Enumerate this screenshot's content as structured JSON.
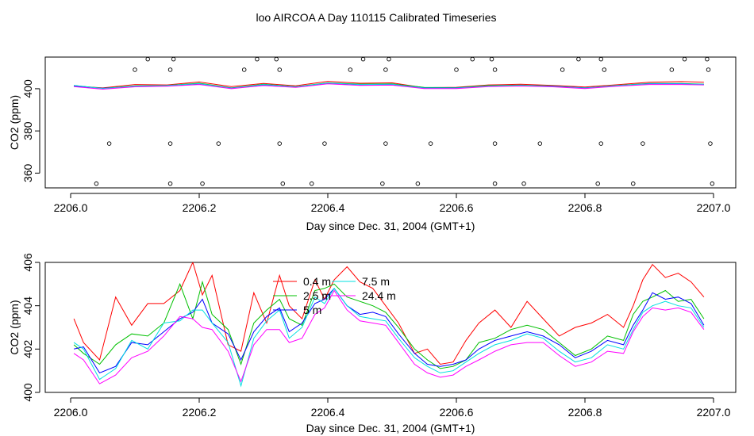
{
  "title": "loo AIRCOA A  Day 110115  Calibrated Timeseries",
  "chart_data": [
    {
      "type": "scatter",
      "xlabel": "Day since Dec. 31, 2004 (GMT+1)",
      "ylabel": "CO2 (ppm)",
      "xlim": [
        2206.0,
        2207.0
      ],
      "ylim": [
        353,
        415
      ],
      "x_ticks": [
        "2206.0",
        "2206.2",
        "2206.4",
        "2206.6",
        "2206.8",
        "2207.0"
      ],
      "y_ticks": [
        "360",
        "380",
        "400"
      ],
      "y_tick_values": [
        360,
        380,
        400
      ],
      "colors": [
        "#ff0000",
        "#00c000",
        "#0000ff",
        "#00e0e0",
        "#ff00ff"
      ],
      "line_series": [
        {
          "x": [
            2206.005,
            2206.05,
            2206.1,
            2206.15,
            2206.2,
            2206.25,
            2206.3,
            2206.35,
            2206.4,
            2206.45,
            2206.5,
            2206.55,
            2206.6,
            2206.65,
            2206.7,
            2206.75,
            2206.8,
            2206.85,
            2206.9,
            2206.95,
            2206.985
          ],
          "y": [
            401.3,
            400.4,
            402,
            401.8,
            403.2,
            401,
            402.5,
            401.4,
            403.5,
            402.6,
            402.8,
            400.5,
            400.7,
            401.8,
            402.1,
            401.6,
            400.8,
            401.9,
            403.1,
            403.4,
            403.1
          ]
        },
        {
          "x": [
            2206.005,
            2206.05,
            2206.1,
            2206.15,
            2206.2,
            2206.25,
            2206.3,
            2206.35,
            2206.4,
            2206.45,
            2206.5,
            2206.55,
            2206.6,
            2206.65,
            2206.7,
            2206.75,
            2206.8,
            2206.85,
            2206.9,
            2206.95,
            2206.985
          ],
          "y": [
            401.5,
            400.2,
            401.4,
            401.6,
            402.6,
            400.4,
            402.1,
            401,
            402.8,
            402.2,
            402.3,
            400.6,
            400.5,
            401.5,
            401.7,
            401.3,
            400.4,
            401.6,
            402.5,
            402.5,
            402.2
          ]
        },
        {
          "x": [
            2206.005,
            2206.05,
            2206.1,
            2206.15,
            2206.2,
            2206.25,
            2206.3,
            2206.35,
            2206.4,
            2206.45,
            2206.5,
            2206.55,
            2206.6,
            2206.65,
            2206.7,
            2206.75,
            2206.8,
            2206.85,
            2206.9,
            2206.95,
            2206.985
          ],
          "y": [
            401.2,
            400.2,
            401.1,
            401.4,
            402.3,
            400.3,
            401.8,
            400.8,
            402.6,
            401.9,
            402,
            400.4,
            400.4,
            401.2,
            401.5,
            401.2,
            400.4,
            401.4,
            402.4,
            402.4,
            402
          ]
        },
        {
          "x": [
            2206.005,
            2206.05,
            2206.1,
            2206.15,
            2206.2,
            2206.25,
            2206.3,
            2206.35,
            2206.4,
            2206.45,
            2206.5,
            2206.55,
            2206.6,
            2206.65,
            2206.7,
            2206.75,
            2206.8,
            2206.85,
            2206.9,
            2206.95,
            2206.985
          ],
          "y": [
            401.6,
            400.1,
            401.3,
            401.5,
            402.4,
            400.2,
            402,
            400.9,
            402.7,
            402,
            402.1,
            400.3,
            400.3,
            401.3,
            401.6,
            401.1,
            400.3,
            401.5,
            402.3,
            402.3,
            402.1
          ]
        },
        {
          "x": [
            2206.005,
            2206.05,
            2206.1,
            2206.15,
            2206.2,
            2206.25,
            2206.3,
            2206.35,
            2206.4,
            2206.45,
            2206.5,
            2206.55,
            2206.6,
            2206.65,
            2206.7,
            2206.75,
            2206.8,
            2206.85,
            2206.9,
            2206.95,
            2206.985
          ],
          "y": [
            401,
            399.8,
            400.9,
            401.2,
            402,
            400,
            401.5,
            400.6,
            402.3,
            401.6,
            401.7,
            400.1,
            400.1,
            401,
            401.3,
            400.9,
            400.1,
            401.2,
            402,
            402,
            401.8
          ]
        }
      ],
      "points": {
        "x": [
          2206.12,
          2206.16,
          2206.29,
          2206.32,
          2206.455,
          2206.495,
          2206.625,
          2206.655,
          2206.79,
          2206.825,
          2206.955,
          2206.99,
          2206.1,
          2206.155,
          2206.27,
          2206.325,
          2206.435,
          2206.49,
          2206.6,
          2206.66,
          2206.765,
          2206.83,
          2206.935,
          2206.992,
          2206.06,
          2206.155,
          2206.23,
          2206.325,
          2206.395,
          2206.49,
          2206.56,
          2206.66,
          2206.73,
          2206.825,
          2206.89,
          2206.995,
          2206.04,
          2206.155,
          2206.205,
          2206.33,
          2206.375,
          2206.485,
          2206.54,
          2206.66,
          2206.705,
          2206.82,
          2206.875,
          2206.998
        ],
        "y": [
          414,
          414,
          414,
          414,
          414,
          414,
          414,
          414,
          414,
          414,
          414,
          414,
          409,
          409,
          409,
          409,
          409,
          409,
          409,
          409,
          409,
          409,
          409,
          409,
          374,
          374,
          374,
          374,
          374,
          374,
          374,
          374,
          374,
          374,
          374,
          374,
          355,
          355,
          355,
          355,
          355,
          355,
          355,
          355,
          355,
          355,
          355,
          355
        ]
      }
    },
    {
      "type": "line",
      "xlabel": "Day since Dec. 31, 2004 (GMT+1)",
      "ylabel": "CO2 (ppm)",
      "xlim": [
        2206.0,
        2207.0
      ],
      "ylim": [
        400,
        406
      ],
      "x_ticks": [
        "2206.0",
        "2206.2",
        "2206.4",
        "2206.6",
        "2206.8",
        "2207.0"
      ],
      "y_ticks": [
        "400",
        "402",
        "404",
        "406"
      ],
      "y_tick_values": [
        400,
        402,
        404,
        406
      ],
      "legend": [
        "0.4 m",
        "2.5 m",
        "5 m",
        "7.5 m",
        "24.4 m"
      ],
      "legend_position": "top-center",
      "colors": [
        "#ff0000",
        "#00c000",
        "#0000ff",
        "#00e0e0",
        "#ff00ff"
      ],
      "series": [
        {
          "name": "0.4 m",
          "x": [
            2206.005,
            2206.02,
            2206.045,
            2206.07,
            2206.095,
            2206.12,
            2206.145,
            2206.17,
            2206.19,
            2206.205,
            2206.22,
            2206.245,
            2206.265,
            2206.285,
            2206.305,
            2206.325,
            2206.34,
            2206.36,
            2206.38,
            2206.395,
            2206.41,
            2206.43,
            2206.45,
            2206.47,
            2206.49,
            2206.51,
            2206.535,
            2206.555,
            2206.575,
            2206.595,
            2206.615,
            2206.635,
            2206.66,
            2206.685,
            2206.71,
            2206.735,
            2206.76,
            2206.785,
            2206.81,
            2206.835,
            2206.86,
            2206.875,
            2206.89,
            2206.905,
            2206.925,
            2206.945,
            2206.965,
            2206.985
          ],
          "y": [
            403.4,
            402.3,
            401.5,
            404.4,
            403.1,
            404.1,
            404.1,
            404.7,
            406.0,
            404.5,
            405.4,
            402.2,
            401.9,
            404.6,
            403.2,
            405.4,
            404.0,
            403.4,
            405.2,
            404.3,
            405.2,
            405.8,
            405.1,
            404.8,
            404.0,
            403.2,
            401.8,
            402.0,
            401.3,
            401.4,
            402.4,
            403.2,
            403.8,
            403.0,
            404.2,
            403.4,
            402.6,
            403.0,
            403.2,
            403.6,
            403.0,
            404.0,
            405.2,
            405.9,
            405.3,
            405.5,
            405.1,
            404.4
          ]
        },
        {
          "name": "2.5 m",
          "x": [
            2206.005,
            2206.02,
            2206.045,
            2206.07,
            2206.095,
            2206.12,
            2206.145,
            2206.17,
            2206.19,
            2206.205,
            2206.22,
            2206.245,
            2206.265,
            2206.285,
            2206.305,
            2206.325,
            2206.34,
            2206.36,
            2206.38,
            2206.395,
            2206.41,
            2206.43,
            2206.45,
            2206.47,
            2206.49,
            2206.51,
            2206.535,
            2206.555,
            2206.575,
            2206.595,
            2206.615,
            2206.635,
            2206.66,
            2206.685,
            2206.71,
            2206.735,
            2206.76,
            2206.785,
            2206.81,
            2206.835,
            2206.86,
            2206.875,
            2206.89,
            2206.905,
            2206.925,
            2206.945,
            2206.965,
            2206.985
          ],
          "y": [
            402.2,
            401.8,
            401.3,
            402.2,
            402.7,
            402.6,
            403.2,
            405.0,
            403.4,
            405.1,
            403.6,
            402.9,
            401.3,
            403.2,
            403.8,
            404.3,
            403.4,
            403.1,
            404.7,
            404.8,
            405.0,
            404.4,
            404.2,
            404.0,
            403.7,
            403.0,
            402.0,
            401.5,
            401.1,
            401.2,
            401.5,
            402.3,
            402.5,
            402.9,
            403.1,
            402.9,
            402.3,
            401.7,
            402.0,
            402.6,
            402.4,
            403.6,
            404.2,
            404.4,
            404.7,
            404.2,
            404.3,
            403.4
          ]
        },
        {
          "name": "5 m",
          "x": [
            2206.005,
            2206.02,
            2206.045,
            2206.07,
            2206.095,
            2206.12,
            2206.145,
            2206.17,
            2206.19,
            2206.205,
            2206.22,
            2206.245,
            2206.265,
            2206.285,
            2206.305,
            2206.325,
            2206.34,
            2206.36,
            2206.38,
            2206.395,
            2206.41,
            2206.43,
            2206.45,
            2206.47,
            2206.49,
            2206.51,
            2206.535,
            2206.555,
            2206.575,
            2206.595,
            2206.615,
            2206.635,
            2206.66,
            2206.685,
            2206.71,
            2206.735,
            2206.76,
            2206.785,
            2206.81,
            2206.835,
            2206.86,
            2206.875,
            2206.89,
            2206.905,
            2206.925,
            2206.945,
            2206.965,
            2206.985
          ],
          "y": [
            402.0,
            402.1,
            400.9,
            401.2,
            402.3,
            402.2,
            402.8,
            403.4,
            403.7,
            404.3,
            403.2,
            402.7,
            401.5,
            402.8,
            403.5,
            403.9,
            402.8,
            403.2,
            404.1,
            404.3,
            404.8,
            404.0,
            403.6,
            403.7,
            403.5,
            402.7,
            401.8,
            401.3,
            401.2,
            401.3,
            401.5,
            402.0,
            402.4,
            402.6,
            402.8,
            402.6,
            402.2,
            401.6,
            401.9,
            402.4,
            402.2,
            403.1,
            403.8,
            404.6,
            404.3,
            404.4,
            404.1,
            403.1
          ]
        },
        {
          "name": "7.5 m",
          "x": [
            2206.005,
            2206.02,
            2206.045,
            2206.07,
            2206.095,
            2206.12,
            2206.145,
            2206.17,
            2206.19,
            2206.205,
            2206.22,
            2206.245,
            2206.265,
            2206.285,
            2206.305,
            2206.325,
            2206.34,
            2206.36,
            2206.38,
            2206.395,
            2206.41,
            2206.43,
            2206.45,
            2206.47,
            2206.49,
            2206.51,
            2206.535,
            2206.555,
            2206.575,
            2206.595,
            2206.615,
            2206.635,
            2206.66,
            2206.685,
            2206.71,
            2206.735,
            2206.76,
            2206.785,
            2206.81,
            2206.835,
            2206.86,
            2206.875,
            2206.89,
            2206.905,
            2206.925,
            2206.945,
            2206.965,
            2206.985
          ],
          "y": [
            402.3,
            402.0,
            400.6,
            401.1,
            402.4,
            402.0,
            403.2,
            403.3,
            403.8,
            403.8,
            403.2,
            402.3,
            400.3,
            402.5,
            403.3,
            403.8,
            402.5,
            403.0,
            404.4,
            404.1,
            404.8,
            404.0,
            403.5,
            403.4,
            403.3,
            402.5,
            401.6,
            401.2,
            400.9,
            401.0,
            401.4,
            401.8,
            402.2,
            402.4,
            402.7,
            402.5,
            401.9,
            401.4,
            401.6,
            402.2,
            402.0,
            402.9,
            403.7,
            404.0,
            404.2,
            404.0,
            403.9,
            403.0
          ]
        },
        {
          "name": "24.4 m",
          "x": [
            2206.005,
            2206.02,
            2206.045,
            2206.07,
            2206.095,
            2206.12,
            2206.145,
            2206.17,
            2206.19,
            2206.205,
            2206.22,
            2206.245,
            2206.265,
            2206.285,
            2206.305,
            2206.325,
            2206.34,
            2206.36,
            2206.38,
            2206.395,
            2206.41,
            2206.43,
            2206.45,
            2206.47,
            2206.49,
            2206.51,
            2206.535,
            2206.555,
            2206.575,
            2206.595,
            2206.615,
            2206.635,
            2206.66,
            2206.685,
            2206.71,
            2206.735,
            2206.76,
            2206.785,
            2206.81,
            2206.835,
            2206.86,
            2206.875,
            2206.89,
            2206.905,
            2206.925,
            2206.945,
            2206.965,
            2206.985
          ],
          "y": [
            401.8,
            401.5,
            400.4,
            400.8,
            401.6,
            401.9,
            402.6,
            403.5,
            403.4,
            403.0,
            402.9,
            401.9,
            400.5,
            402.2,
            402.9,
            402.9,
            402.3,
            402.5,
            403.6,
            403.9,
            404.7,
            403.8,
            403.3,
            403.2,
            403.1,
            402.3,
            401.3,
            400.9,
            400.7,
            400.8,
            401.2,
            401.5,
            401.9,
            402.2,
            402.3,
            402.3,
            401.7,
            401.2,
            401.4,
            401.9,
            401.8,
            402.8,
            403.5,
            403.9,
            403.8,
            403.9,
            403.7,
            402.9
          ]
        }
      ]
    }
  ]
}
